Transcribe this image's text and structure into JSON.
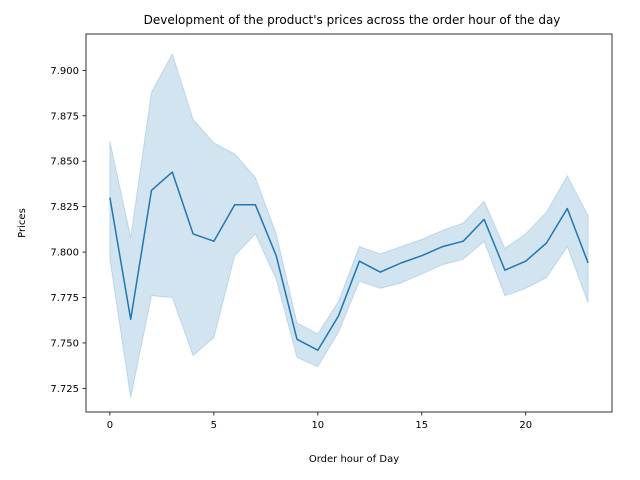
{
  "chart_data": {
    "type": "line",
    "title": "Development of the product's prices across the order hour of the day",
    "xlabel": "Order hour of Day",
    "ylabel": "Prices",
    "xlim": [
      -1.15,
      24.15
    ],
    "ylim": [
      7.712,
      7.92
    ],
    "xticks": [
      0,
      5,
      10,
      15,
      20
    ],
    "xtick_labels": [
      "0",
      "5",
      "10",
      "15",
      "20"
    ],
    "yticks": [
      7.725,
      7.75,
      7.775,
      7.8,
      7.825,
      7.85,
      7.875,
      7.9
    ],
    "ytick_labels": [
      "7.725",
      "7.750",
      "7.775",
      "7.800",
      "7.825",
      "7.850",
      "7.875",
      "7.900"
    ],
    "grid": false,
    "series": [
      {
        "name": "Prices",
        "color": "#1f77b4",
        "band_color": "#1f77b4",
        "x": [
          0,
          1,
          2,
          3,
          4,
          5,
          6,
          7,
          8,
          9,
          10,
          11,
          12,
          13,
          14,
          15,
          16,
          17,
          18,
          19,
          20,
          21,
          22,
          23
        ],
        "values": [
          7.83,
          7.763,
          7.834,
          7.844,
          7.81,
          7.806,
          7.826,
          7.826,
          7.798,
          7.752,
          7.746,
          7.765,
          7.795,
          7.789,
          7.794,
          7.798,
          7.803,
          7.806,
          7.818,
          7.79,
          7.795,
          7.805,
          7.824,
          7.794
        ],
        "ci_lower": [
          7.796,
          7.72,
          7.776,
          7.775,
          7.743,
          7.753,
          7.798,
          7.81,
          7.785,
          7.742,
          7.737,
          7.756,
          7.784,
          7.78,
          7.783,
          7.788,
          7.793,
          7.796,
          7.806,
          7.776,
          7.78,
          7.786,
          7.803,
          7.772
        ],
        "ci_upper": [
          7.861,
          7.808,
          7.888,
          7.909,
          7.873,
          7.86,
          7.854,
          7.841,
          7.81,
          7.761,
          7.755,
          7.773,
          7.803,
          7.799,
          7.803,
          7.807,
          7.812,
          7.816,
          7.828,
          7.802,
          7.81,
          7.822,
          7.842,
          7.82
        ]
      }
    ]
  }
}
